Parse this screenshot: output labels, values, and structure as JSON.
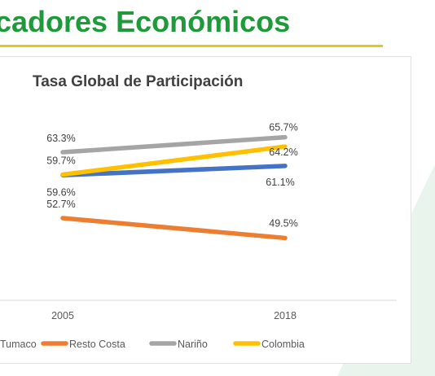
{
  "header": {
    "title": "cadores Económicos",
    "underline_color": "#e8c619",
    "title_color": "#1f9a3a"
  },
  "chart_data": {
    "type": "line",
    "title": "Tasa Global de Participación",
    "categories": [
      "2005",
      "2018"
    ],
    "series": [
      {
        "name": "Tumaco",
        "values": [
          59.6,
          61.1
        ],
        "labels": [
          "59.6%",
          "61.1%"
        ],
        "color": "#4472c4"
      },
      {
        "name": "Resto Costa",
        "values": [
          52.7,
          49.5
        ],
        "labels": [
          "52.7%",
          "49.5%"
        ],
        "color": "#ed7d31"
      },
      {
        "name": "Nariño",
        "values": [
          63.3,
          65.7
        ],
        "labels": [
          "63.3%",
          "65.7%"
        ],
        "color": "#a5a5a5"
      },
      {
        "name": "Colombia",
        "values": [
          59.7,
          64.2
        ],
        "labels": [
          "59.7%",
          "64.2%"
        ],
        "color": "#ffc000"
      }
    ],
    "legend_position": "bottom",
    "grid": false
  }
}
